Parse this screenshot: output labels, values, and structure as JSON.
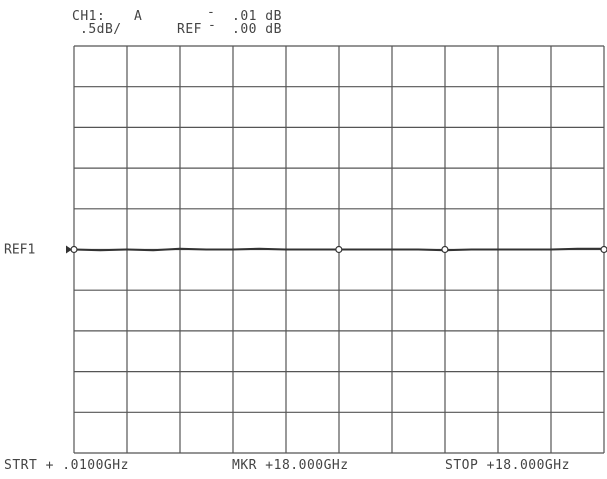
{
  "header": {
    "channel": "CH1:",
    "param": "A",
    "marker_value": ".01 dB",
    "scale": ".5dB/",
    "ref_label": "REF",
    "ref_value": ".00 dB",
    "dash1": "-",
    "dash2": "-"
  },
  "ref_line_label": "REF1",
  "footer": {
    "start": "STRT + .0100GHz",
    "marker": "MKR +18.000GHz",
    "stop": "STOP +18.000GHz"
  },
  "colors": {
    "grid": "#555555",
    "trace": "#333333",
    "background": "#ffffff"
  },
  "chart_data": {
    "type": "line",
    "title": "",
    "xlabel": "",
    "ylabel": "",
    "divisions_x": 10,
    "divisions_y": 10,
    "ref_division": 5,
    "x_unit": "GHz",
    "x_start": 0.01,
    "x_stop": 18.0,
    "y_unit": "dB",
    "y_per_div": 0.5,
    "y_ref": 0.0,
    "marker_x": 18.0,
    "marker_y": 0.01,
    "grid": true,
    "series": [
      {
        "x": [
          0.01,
          0.9,
          1.8,
          2.7,
          3.6,
          4.5,
          5.4,
          6.3,
          7.2,
          8.1,
          9.0,
          9.9,
          10.8,
          11.7,
          12.6,
          13.5,
          14.4,
          15.3,
          16.2,
          17.1,
          18.0
        ],
        "y": [
          0.0,
          -0.01,
          0.0,
          -0.01,
          0.01,
          0.0,
          0.0,
          0.01,
          0.0,
          0.0,
          0.0,
          0.0,
          0.0,
          0.0,
          -0.01,
          0.0,
          0.0,
          0.0,
          0.0,
          0.01,
          0.01
        ]
      }
    ],
    "dot_markers_x": [
      0.01,
      9.0,
      12.6,
      18.0
    ]
  }
}
